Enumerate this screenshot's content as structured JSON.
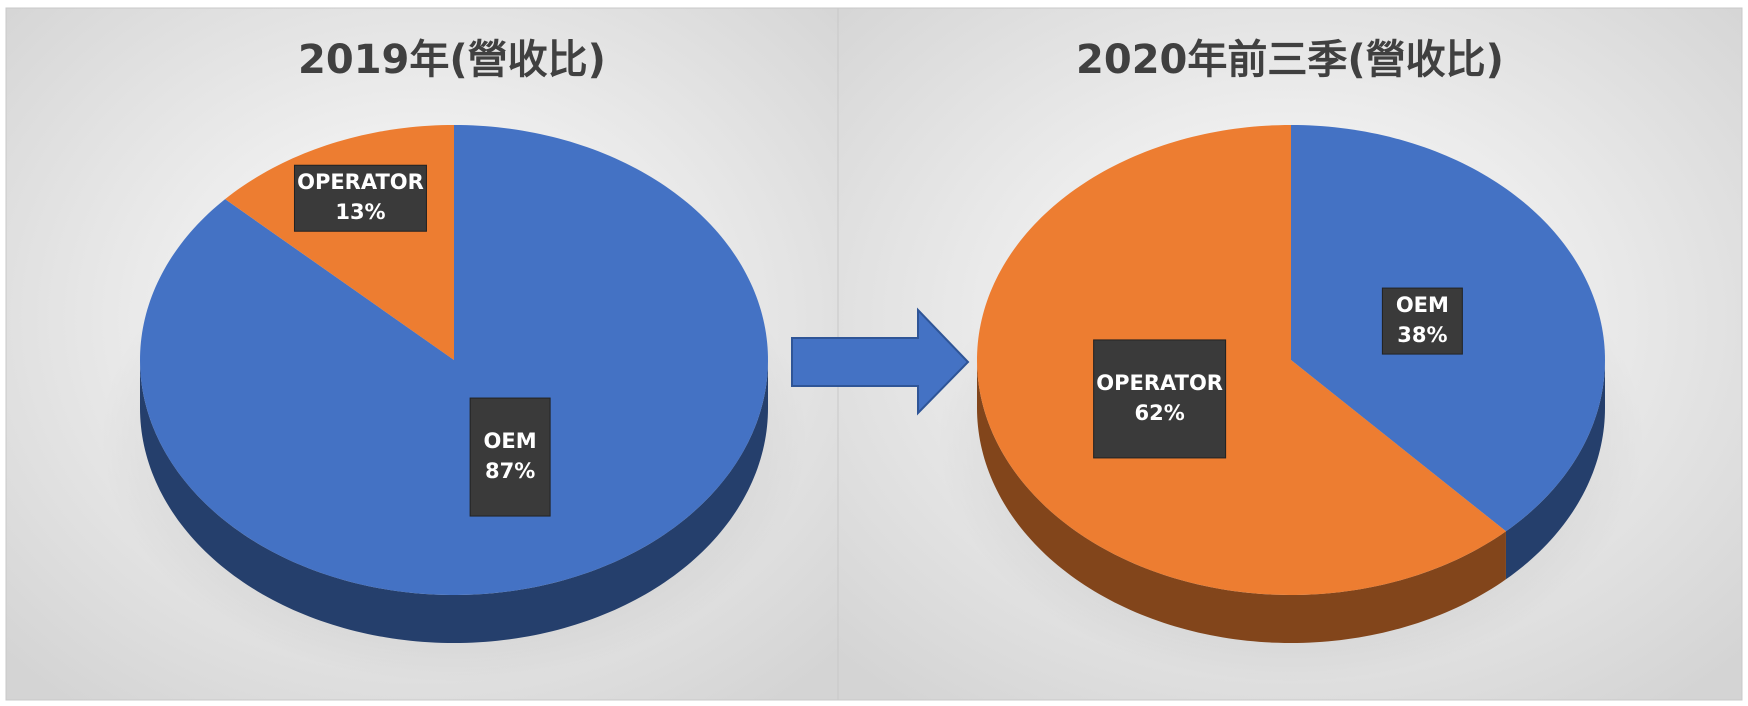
{
  "chart_data": [
    {
      "type": "pie",
      "title": "2019年(營收比)",
      "categories": [
        "OEM",
        "OPERATOR"
      ],
      "values": [
        87,
        13
      ],
      "value_labels": [
        "87%",
        "13%"
      ],
      "colors": [
        "#4472c4",
        "#ed7d31"
      ]
    },
    {
      "type": "pie",
      "title": "2020年前三季(營收比)",
      "categories": [
        "OEM",
        "OPERATOR"
      ],
      "values": [
        38,
        62
      ],
      "value_labels": [
        "38%",
        "62%"
      ],
      "colors": [
        "#4472c4",
        "#ed7d31"
      ]
    }
  ]
}
